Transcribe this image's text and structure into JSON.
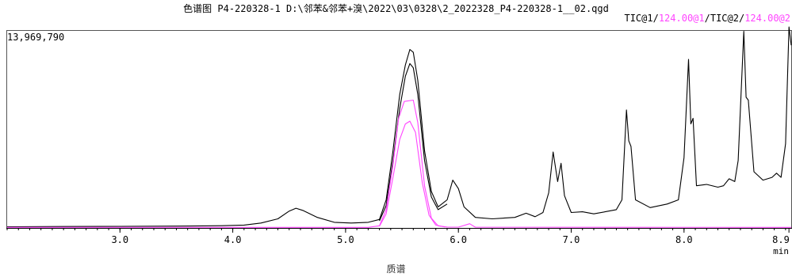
{
  "header": {
    "title": "色谱图 P4-220328-1 D:\\邻苯&邻苯+溴\\2022\\03\\0328\\2_2022328_P4-220328-1__02.qgd",
    "legend": [
      {
        "text": "TIC@1",
        "color": "#000000"
      },
      {
        "text": "/",
        "color": "#000000"
      },
      {
        "text": "124.00@1",
        "color": "#ff44ff"
      },
      {
        "text": "/TIC@2/",
        "color": "#000000"
      },
      {
        "text": "124.00@2",
        "color": "#ff44ff"
      }
    ]
  },
  "footer": {
    "label": "质谱"
  },
  "chart_data": {
    "type": "line",
    "y_max_label": "13,969,790",
    "x_unit": "min",
    "xlim": [
      2.0,
      8.95
    ],
    "ylim": [
      0,
      13969790
    ],
    "x_ticks": [
      {
        "value": 3.0,
        "label": "3.0"
      },
      {
        "value": 4.0,
        "label": "4.0"
      },
      {
        "value": 5.0,
        "label": "5.0"
      },
      {
        "value": 6.0,
        "label": "6.0"
      },
      {
        "value": 7.0,
        "label": "7.0"
      },
      {
        "value": 8.0,
        "label": "8.0"
      },
      {
        "value": 8.93,
        "label": "8.9"
      }
    ],
    "series": [
      {
        "name": "TIC@1",
        "color": "#000000",
        "points": [
          [
            2.0,
            85000
          ],
          [
            2.5,
            100000
          ],
          [
            3.0,
            110000
          ],
          [
            3.5,
            130000
          ],
          [
            3.9,
            160000
          ],
          [
            4.1,
            200000
          ],
          [
            4.25,
            350000
          ],
          [
            4.4,
            650000
          ],
          [
            4.5,
            1200000
          ],
          [
            4.56,
            1400000
          ],
          [
            4.62,
            1250000
          ],
          [
            4.75,
            750000
          ],
          [
            4.9,
            400000
          ],
          [
            5.05,
            350000
          ],
          [
            5.2,
            400000
          ],
          [
            5.3,
            600000
          ],
          [
            5.36,
            2000000
          ],
          [
            5.42,
            5500000
          ],
          [
            5.48,
            9500000
          ],
          [
            5.53,
            11600000
          ],
          [
            5.57,
            12700000
          ],
          [
            5.6,
            12500000
          ],
          [
            5.64,
            10500000
          ],
          [
            5.7,
            5500000
          ],
          [
            5.76,
            2600000
          ],
          [
            5.82,
            1500000
          ],
          [
            5.9,
            2000000
          ],
          [
            5.95,
            3400000
          ],
          [
            6.0,
            2800000
          ],
          [
            6.05,
            1500000
          ],
          [
            6.15,
            750000
          ],
          [
            6.3,
            650000
          ],
          [
            6.5,
            750000
          ],
          [
            6.6,
            1050000
          ],
          [
            6.68,
            800000
          ],
          [
            6.75,
            1100000
          ],
          [
            6.8,
            2500000
          ],
          [
            6.84,
            5400000
          ],
          [
            6.88,
            3300000
          ],
          [
            6.91,
            4600000
          ],
          [
            6.94,
            2300000
          ],
          [
            7.0,
            1100000
          ],
          [
            7.1,
            1150000
          ],
          [
            7.2,
            1000000
          ],
          [
            7.3,
            1150000
          ],
          [
            7.4,
            1300000
          ],
          [
            7.45,
            2000000
          ],
          [
            7.49,
            8400000
          ],
          [
            7.51,
            6200000
          ],
          [
            7.53,
            5800000
          ],
          [
            7.57,
            2000000
          ],
          [
            7.7,
            1450000
          ],
          [
            7.85,
            1700000
          ],
          [
            7.95,
            2000000
          ],
          [
            8.0,
            5000000
          ],
          [
            8.04,
            12000000
          ],
          [
            8.06,
            7400000
          ],
          [
            8.08,
            7800000
          ],
          [
            8.11,
            3000000
          ],
          [
            8.2,
            3100000
          ],
          [
            8.3,
            2900000
          ],
          [
            8.35,
            3000000
          ],
          [
            8.4,
            3500000
          ],
          [
            8.45,
            3300000
          ],
          [
            8.48,
            4800000
          ],
          [
            8.53,
            14000000
          ],
          [
            8.55,
            9300000
          ],
          [
            8.57,
            9100000
          ],
          [
            8.62,
            4000000
          ],
          [
            8.7,
            3400000
          ],
          [
            8.78,
            3600000
          ],
          [
            8.82,
            3900000
          ],
          [
            8.86,
            3600000
          ],
          [
            8.9,
            6000000
          ],
          [
            8.93,
            14300000
          ],
          [
            8.95,
            13000000
          ]
        ]
      },
      {
        "name": "TIC@2",
        "color": "#000000",
        "points": [
          [
            5.3,
            500000
          ],
          [
            5.36,
            1600000
          ],
          [
            5.42,
            4800000
          ],
          [
            5.48,
            8500000
          ],
          [
            5.53,
            10800000
          ],
          [
            5.57,
            11700000
          ],
          [
            5.6,
            11400000
          ],
          [
            5.64,
            9500000
          ],
          [
            5.7,
            4800000
          ],
          [
            5.76,
            2200000
          ],
          [
            5.82,
            1300000
          ],
          [
            5.9,
            1700000
          ]
        ]
      },
      {
        "name": "124.00@1",
        "color": "#ff44ff",
        "points": [
          [
            2.0,
            40000
          ],
          [
            5.2,
            40000
          ],
          [
            5.3,
            150000
          ],
          [
            5.36,
            1300000
          ],
          [
            5.42,
            4500000
          ],
          [
            5.47,
            7800000
          ],
          [
            5.52,
            9000000
          ],
          [
            5.6,
            9100000
          ],
          [
            5.64,
            7500000
          ],
          [
            5.7,
            3000000
          ],
          [
            5.76,
            700000
          ],
          [
            5.82,
            150000
          ],
          [
            5.9,
            60000
          ],
          [
            6.0,
            55000
          ],
          [
            6.1,
            300000
          ],
          [
            6.15,
            50000
          ],
          [
            8.95,
            40000
          ]
        ]
      },
      {
        "name": "124.00@2",
        "color": "#ff44ff",
        "points": [
          [
            5.3,
            120000
          ],
          [
            5.36,
            1000000
          ],
          [
            5.42,
            3600000
          ],
          [
            5.48,
            6300000
          ],
          [
            5.53,
            7400000
          ],
          [
            5.57,
            7600000
          ],
          [
            5.62,
            6800000
          ],
          [
            5.68,
            3200000
          ],
          [
            5.74,
            900000
          ],
          [
            5.8,
            200000
          ],
          [
            5.88,
            60000
          ]
        ]
      }
    ]
  }
}
